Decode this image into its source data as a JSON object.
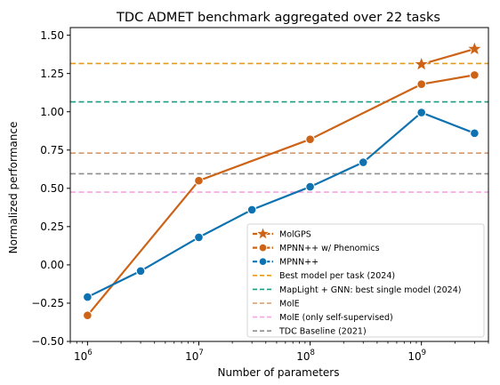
{
  "chart_data": {
    "type": "line",
    "title": "TDC ADMET benchmark aggregated over 22 tasks",
    "xlabel": "Number of parameters",
    "ylabel": "Normalized performance",
    "xscale": "log",
    "xlim": [
      700000,
      4000000000
    ],
    "ylim": [
      -0.5,
      1.55
    ],
    "x_ticks": [
      {
        "value": 1000000,
        "base": "10",
        "exp": "6"
      },
      {
        "value": 10000000,
        "base": "10",
        "exp": "7"
      },
      {
        "value": 100000000,
        "base": "10",
        "exp": "8"
      },
      {
        "value": 1000000000,
        "base": "10",
        "exp": "9"
      }
    ],
    "y_ticks": [
      {
        "value": -0.5,
        "label": "−0.50"
      },
      {
        "value": -0.25,
        "label": "−0.25"
      },
      {
        "value": 0.0,
        "label": "0.00"
      },
      {
        "value": 0.25,
        "label": "0.25"
      },
      {
        "value": 0.5,
        "label": "0.50"
      },
      {
        "value": 0.75,
        "label": "0.75"
      },
      {
        "value": 1.0,
        "label": "1.00"
      },
      {
        "value": 1.25,
        "label": "1.25"
      },
      {
        "value": 1.5,
        "label": "1.50"
      }
    ],
    "series": [
      {
        "name": "MolGPS",
        "color": "#cc6317",
        "marker": "star",
        "x": [
          1000000000,
          3000000000
        ],
        "y": [
          1.31,
          1.41
        ]
      },
      {
        "name": "MPNN++ w/ Phenomics",
        "color": "#cc6317",
        "marker": "circle",
        "x": [
          1000000,
          10000000,
          100000000,
          1000000000,
          3000000000
        ],
        "y": [
          -0.33,
          0.55,
          0.82,
          1.18,
          1.24
        ]
      },
      {
        "name": "MPNN++",
        "color": "#0f72b0",
        "marker": "circle",
        "x": [
          1000000,
          3000000,
          10000000,
          30000000,
          100000000,
          300000000,
          1000000000,
          3000000000
        ],
        "y": [
          -0.21,
          -0.04,
          0.18,
          0.36,
          0.51,
          0.67,
          0.995,
          0.86
        ]
      }
    ],
    "reference_lines": [
      {
        "name": "Best model per task (2024)",
        "color": "#e39b1a",
        "y": 1.315
      },
      {
        "name": "MapLight + GNN: best single model (2024)",
        "color": "#1a9e80",
        "y": 1.065
      },
      {
        "name": "MolE",
        "color": "#d49a6e",
        "y": 0.73
      },
      {
        "name": "MolE (only self-supervised)",
        "color": "#f4a6df",
        "y": 0.475
      },
      {
        "name": "TDC Baseline (2021)",
        "color": "#8e8e8e",
        "y": 0.595
      }
    ],
    "legend_position": "lower-right",
    "grid": false
  }
}
